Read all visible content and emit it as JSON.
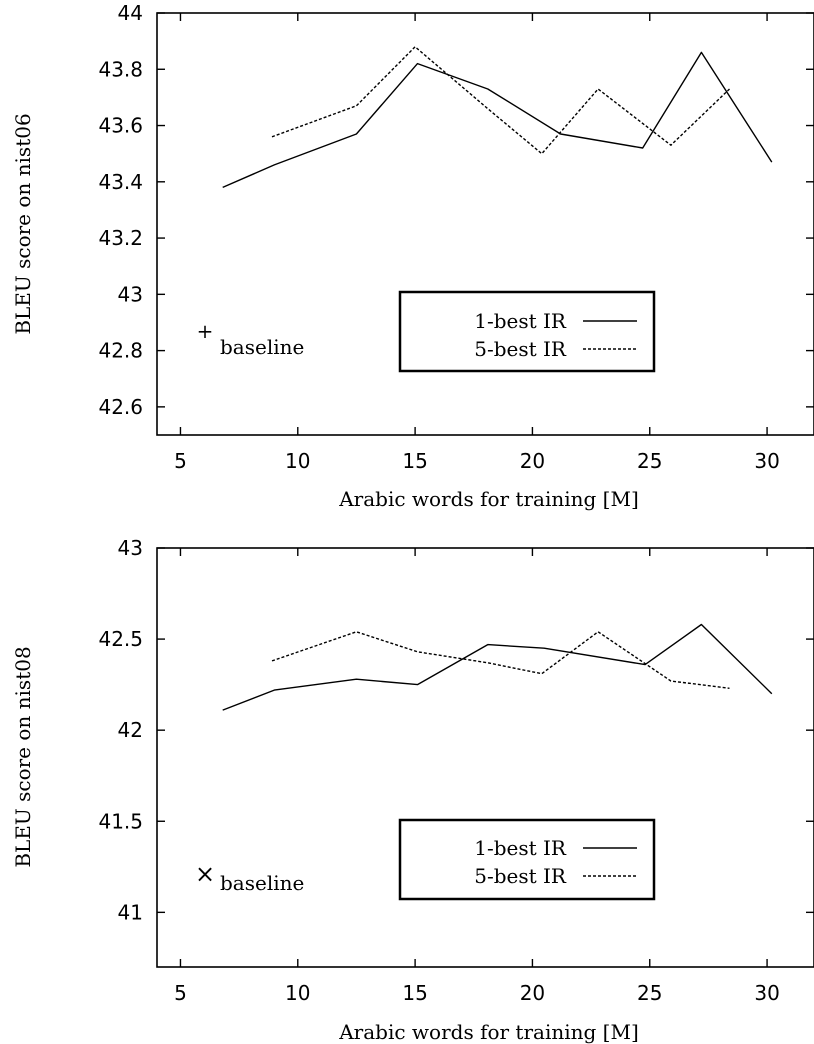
{
  "chart_data": [
    {
      "type": "line",
      "xlabel": "Arabic words for training [M]",
      "ylabel": "BLEU score on nist06",
      "xlim": [
        4,
        32
      ],
      "ylim": [
        42.5,
        44
      ],
      "xticks": [
        "5",
        "10",
        "15",
        "20",
        "25",
        "30"
      ],
      "yticks": [
        "42.6",
        "42.8",
        "43",
        "43.2",
        "43.4",
        "43.6",
        "43.8",
        "44"
      ],
      "legend_position": "bottom-center",
      "series": [
        {
          "name": "1-best IR",
          "style": "solid",
          "x": [
            6.8,
            9.0,
            12.5,
            15.1,
            18.1,
            21.2,
            24.7,
            27.2,
            30.2
          ],
          "y": [
            43.38,
            43.46,
            43.57,
            43.82,
            43.73,
            43.57,
            43.52,
            43.86,
            43.47
          ]
        },
        {
          "name": "5-best IR",
          "style": "dashed",
          "x": [
            8.9,
            12.5,
            15.0,
            18.1,
            20.4,
            22.8,
            25.9,
            28.4
          ],
          "y": [
            43.56,
            43.67,
            43.88,
            43.66,
            43.5,
            43.73,
            43.53,
            43.73
          ]
        }
      ],
      "baseline": {
        "label": "baseline",
        "marker": "+",
        "x": 5.8,
        "y": 42.89
      }
    },
    {
      "type": "line",
      "xlabel": "Arabic words for training [M]",
      "ylabel": "BLEU score on nist08",
      "xlim": [
        4,
        32
      ],
      "ylim": [
        40.7,
        43
      ],
      "xticks": [
        "5",
        "10",
        "15",
        "20",
        "25",
        "30"
      ],
      "yticks": [
        "41",
        "41.5",
        "42",
        "42.5",
        "43"
      ],
      "legend_position": "bottom-center",
      "series": [
        {
          "name": "1-best IR",
          "style": "solid",
          "x": [
            6.8,
            9.0,
            12.5,
            15.1,
            18.1,
            20.5,
            24.8,
            27.2,
            30.2
          ],
          "y": [
            42.11,
            42.22,
            42.28,
            42.25,
            42.47,
            42.45,
            42.36,
            42.58,
            42.2
          ]
        },
        {
          "name": "5-best IR",
          "style": "dashed",
          "x": [
            8.9,
            12.5,
            15.1,
            18.1,
            20.4,
            22.8,
            25.9,
            28.4
          ],
          "y": [
            42.38,
            42.54,
            42.43,
            42.37,
            42.31,
            42.54,
            42.27,
            42.23
          ]
        }
      ],
      "baseline": {
        "label": "baseline",
        "marker": "×",
        "x": 5.8,
        "y": 41.23
      }
    }
  ]
}
